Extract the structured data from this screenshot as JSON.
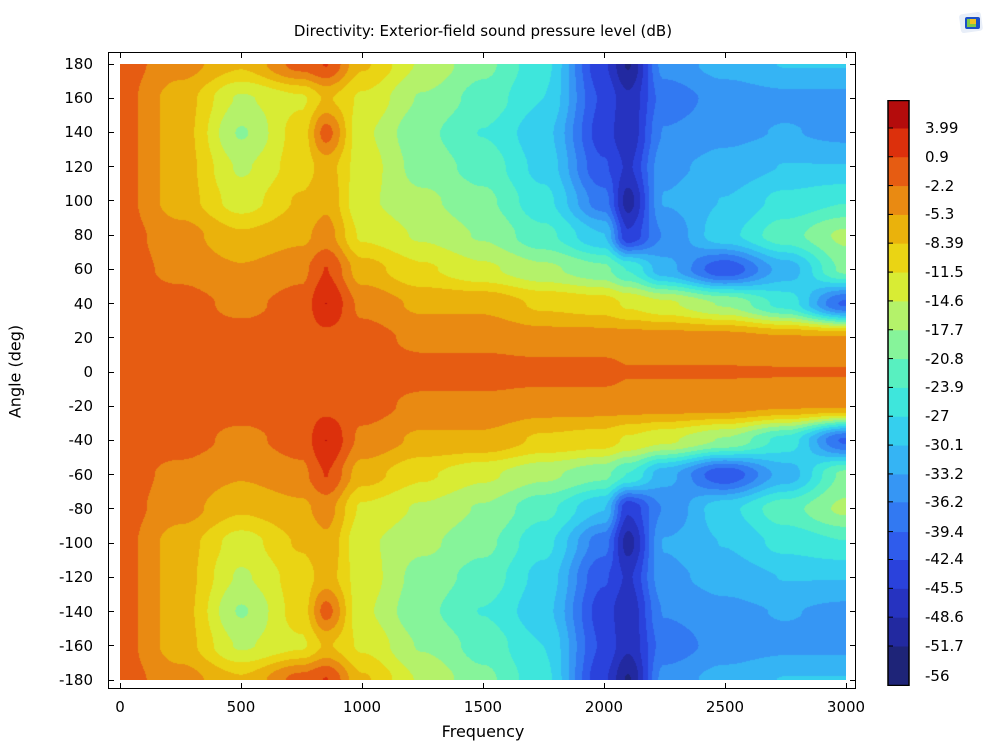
{
  "chart_data": {
    "type": "heatmap",
    "subtype": "filled-contour",
    "title": "Directivity: Exterior-field sound pressure level (dB)",
    "xlabel": "Frequency",
    "ylabel": "Angle (deg)",
    "xlim": [
      0,
      3000
    ],
    "ylim": [
      -180,
      180
    ],
    "xticks": [
      "0",
      "500",
      "1000",
      "1500",
      "2000",
      "2500",
      "3000"
    ],
    "xtick_values": [
      0,
      500,
      1000,
      1500,
      2000,
      2500,
      3000
    ],
    "yticks": [
      "180",
      "160",
      "140",
      "120",
      "100",
      "80",
      "60",
      "40",
      "20",
      "0",
      "-20",
      "-40",
      "-60",
      "-80",
      "-100",
      "-120",
      "-140",
      "-160",
      "-180"
    ],
    "ytick_values": [
      180,
      160,
      140,
      120,
      100,
      80,
      60,
      40,
      20,
      0,
      -20,
      -40,
      -60,
      -80,
      -100,
      -120,
      -140,
      -160,
      -180
    ],
    "symmetric_about_zero_angle": true,
    "grid_frequencies": [
      0,
      250,
      500,
      750,
      850,
      1000,
      1250,
      1500,
      1750,
      2000,
      2100,
      2250,
      2500,
      2750,
      3000
    ],
    "grid_abs_angles": [
      0,
      20,
      40,
      60,
      80,
      100,
      120,
      140,
      160,
      180
    ],
    "z": [
      [
        -1,
        -1,
        -1,
        -1,
        -1,
        -1,
        -1,
        -1,
        -1,
        -1,
        -2,
        -2,
        -2,
        -2,
        -2
      ],
      [
        -1,
        -1,
        -1,
        -1,
        0,
        -1,
        -3,
        -3,
        -4,
        -4,
        -4,
        -4,
        -4,
        -5,
        -5
      ],
      [
        -1,
        -1,
        -3,
        -1,
        4,
        -3,
        -6,
        -6,
        -9,
        -10,
        -12,
        -14,
        -18,
        -25,
        -40
      ],
      [
        -1,
        -3,
        -5,
        -3,
        1,
        -7,
        -11,
        -14,
        -17,
        -20,
        -24,
        -32,
        -42,
        -32,
        -20
      ],
      [
        -1,
        -4,
        -8,
        -6,
        -4,
        -12,
        -15,
        -18,
        -23,
        -30,
        -45,
        -36,
        -28,
        -22,
        -17
      ],
      [
        -1,
        -7,
        -13,
        -8,
        -6,
        -14,
        -17,
        -20,
        -26,
        -38,
        -50,
        -33,
        -30,
        -26,
        -24
      ],
      [
        -1,
        -7,
        -15,
        -10,
        -7,
        -13,
        -19,
        -22,
        -28,
        -42,
        -46,
        -34,
        -32,
        -30,
        -30
      ],
      [
        -1,
        -7,
        -18,
        -10,
        -1,
        -14,
        -20,
        -24,
        -29,
        -44,
        -48,
        -36,
        -34,
        -33,
        -34
      ],
      [
        -1,
        -7,
        -15,
        -12,
        -8,
        -12,
        -18,
        -22,
        -27,
        -43,
        -48,
        -38,
        -35,
        -34,
        -34
      ],
      [
        -1,
        -4,
        -8,
        -1,
        1,
        -8,
        -15,
        -20,
        -26,
        -45,
        -52,
        -35,
        -32,
        -30,
        -30
      ]
    ],
    "colorbar": {
      "unit": "dB",
      "range": [
        -56,
        7
      ],
      "tick_labels": [
        "3.99",
        "0.9",
        "-2.2",
        "-5.3",
        "-8.39",
        "-11.5",
        "-14.6",
        "-17.7",
        "-20.8",
        "-23.9",
        "-27",
        "-30.1",
        "-33.2",
        "-36.2",
        "-39.4",
        "-42.4",
        "-45.5",
        "-48.6",
        "-51.7",
        "-56"
      ],
      "tick_values": [
        3.99,
        0.9,
        -2.2,
        -5.3,
        -8.39,
        -11.5,
        -14.6,
        -17.7,
        -20.8,
        -23.9,
        -27,
        -30.1,
        -33.2,
        -36.2,
        -39.4,
        -42.4,
        -45.5,
        -48.6,
        -51.7,
        -56
      ],
      "band_colors_bottom_to_top": [
        "#1e2478",
        "#2229a0",
        "#2633c0",
        "#2a42dc",
        "#2f5cec",
        "#3279f2",
        "#3696f4",
        "#35b4f4",
        "#35cfee",
        "#3ee6dc",
        "#58f0c0",
        "#86f49a",
        "#b4f26a",
        "#d8ec34",
        "#ead414",
        "#eab20c",
        "#e98a12",
        "#e65c12",
        "#dc300c",
        "#b40c0c"
      ]
    },
    "legend": "right"
  }
}
